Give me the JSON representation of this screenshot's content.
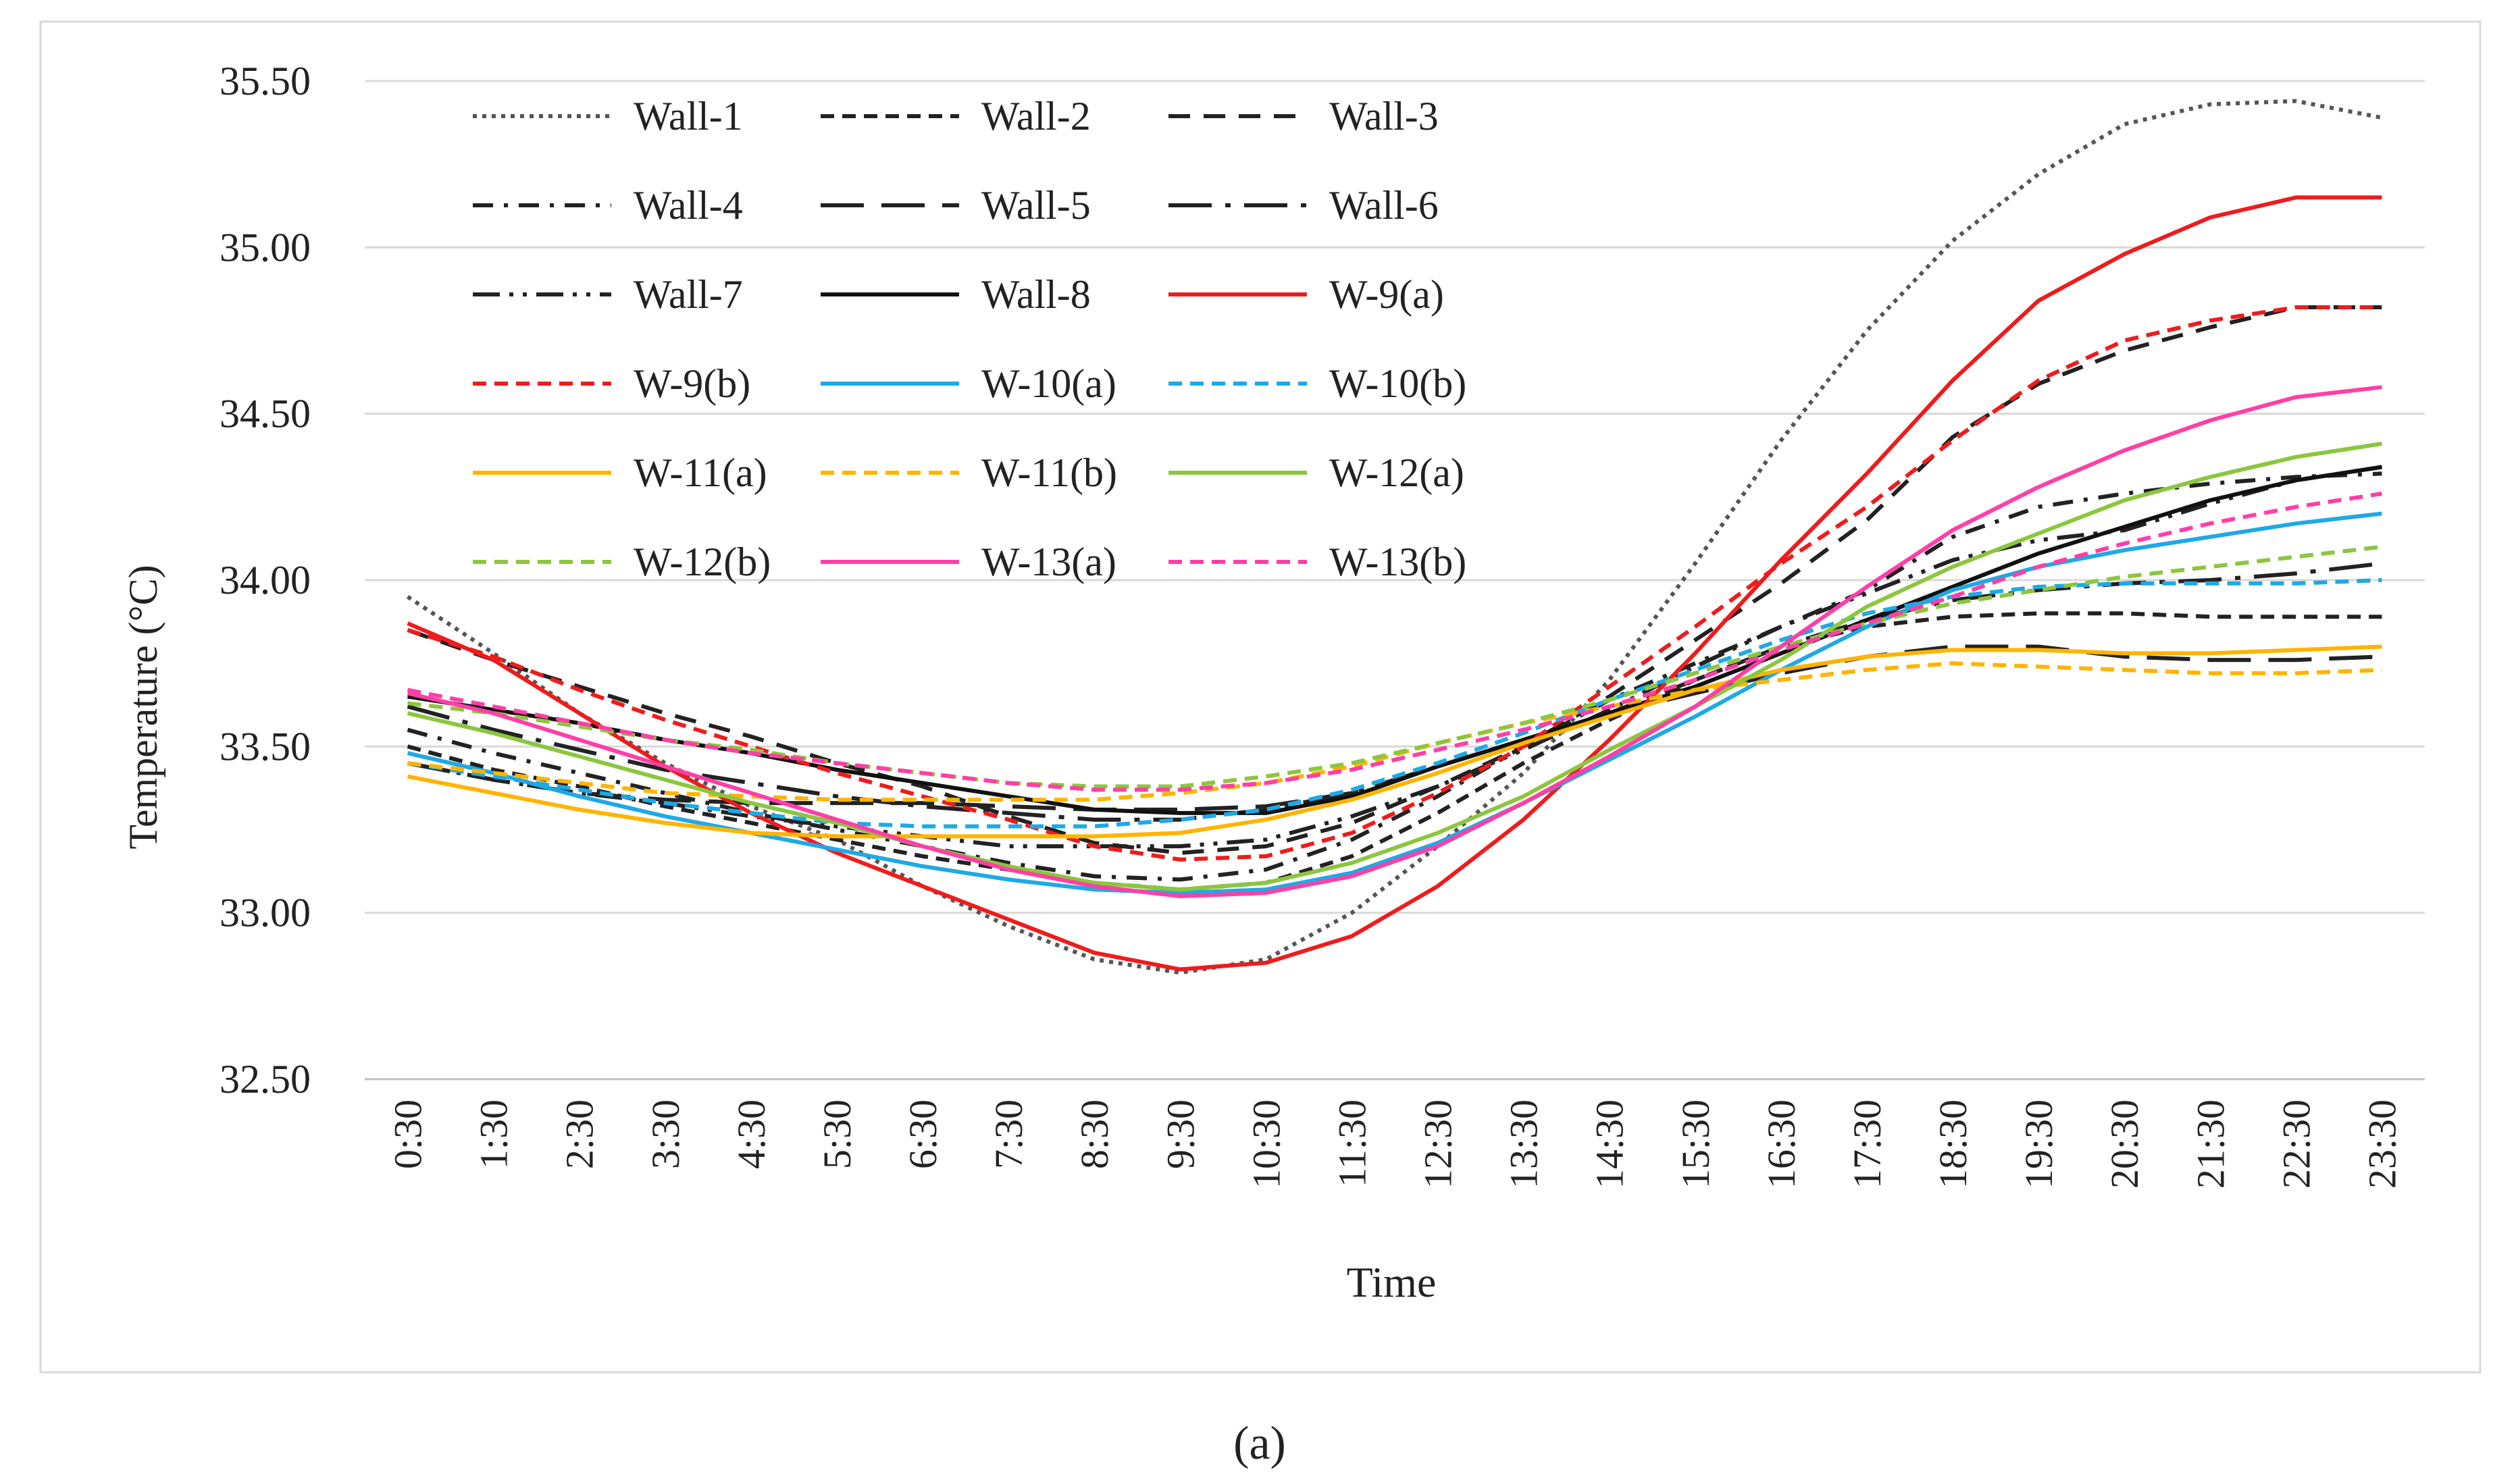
{
  "chart_data": {
    "type": "line",
    "title": "",
    "xlabel": "Time",
    "ylabel": "Temperature (°C)",
    "caption": "(a)",
    "ylim": [
      32.5,
      35.5
    ],
    "yticks": [
      "32.50",
      "33.00",
      "33.50",
      "34.00",
      "34.50",
      "35.00",
      "35.50"
    ],
    "grid": true,
    "legend_position": "top-left",
    "x": [
      "0:30",
      "1:30",
      "2:30",
      "3:30",
      "4:30",
      "5:30",
      "6:30",
      "7:30",
      "8:30",
      "9:30",
      "10:30",
      "11:30",
      "12:30",
      "13:30",
      "14:30",
      "15:30",
      "16:30",
      "17:30",
      "18:30",
      "19:30",
      "20:30",
      "21:30",
      "22:30",
      "23:30"
    ],
    "series": [
      {
        "name": "Wall-1",
        "color": "#555555",
        "dash": "dot",
        "values": [
          33.95,
          33.78,
          33.6,
          33.45,
          33.32,
          33.22,
          33.08,
          32.96,
          32.86,
          32.82,
          32.86,
          33.0,
          33.2,
          33.42,
          33.7,
          34.05,
          34.42,
          34.75,
          35.02,
          35.22,
          35.37,
          35.43,
          35.44,
          35.39
        ]
      },
      {
        "name": "Wall-2",
        "color": "#222222",
        "dash": "short",
        "values": [
          33.5,
          33.43,
          33.38,
          33.32,
          33.27,
          33.22,
          33.17,
          33.13,
          33.09,
          33.07,
          33.09,
          33.17,
          33.3,
          33.45,
          33.58,
          33.7,
          33.8,
          33.86,
          33.89,
          33.9,
          33.9,
          33.89,
          33.89,
          33.89
        ]
      },
      {
        "name": "Wall-3",
        "color": "#222222",
        "dash": "medium",
        "values": [
          33.85,
          33.76,
          33.68,
          33.6,
          33.53,
          33.45,
          33.38,
          33.29,
          33.21,
          33.18,
          33.2,
          33.27,
          33.38,
          33.5,
          33.65,
          33.82,
          33.99,
          34.18,
          34.43,
          34.59,
          34.69,
          34.76,
          34.82,
          34.82
        ]
      },
      {
        "name": "Wall-4",
        "color": "#222222",
        "dash": "dashdot-short",
        "values": [
          33.55,
          33.48,
          33.42,
          33.36,
          33.3,
          33.25,
          33.2,
          33.15,
          33.11,
          33.1,
          33.13,
          33.22,
          33.35,
          33.5,
          33.64,
          33.75,
          33.86,
          33.97,
          34.13,
          34.22,
          34.26,
          34.29,
          34.31,
          34.32
        ]
      },
      {
        "name": "Wall-5",
        "color": "#222222",
        "dash": "long",
        "values": [
          33.45,
          33.4,
          33.36,
          33.34,
          33.33,
          33.33,
          33.33,
          33.32,
          33.31,
          33.31,
          33.32,
          33.36,
          33.44,
          33.52,
          33.6,
          33.66,
          33.72,
          33.77,
          33.8,
          33.8,
          33.77,
          33.76,
          33.76,
          33.77
        ]
      },
      {
        "name": "Wall-6",
        "color": "#222222",
        "dash": "longdot",
        "values": [
          33.62,
          33.55,
          33.49,
          33.43,
          33.39,
          33.35,
          33.32,
          33.3,
          33.28,
          33.28,
          33.31,
          33.36,
          33.44,
          33.52,
          33.6,
          33.7,
          33.8,
          33.88,
          33.94,
          33.97,
          33.99,
          34.0,
          34.02,
          34.05
        ]
      },
      {
        "name": "Wall-7",
        "color": "#222222",
        "dash": "dashdotdot",
        "values": [
          33.45,
          33.4,
          33.36,
          33.33,
          33.29,
          33.26,
          33.23,
          33.2,
          33.2,
          33.2,
          33.22,
          33.29,
          33.38,
          33.49,
          33.61,
          33.74,
          33.86,
          33.96,
          34.06,
          34.12,
          34.15,
          34.23,
          34.3,
          34.34
        ]
      },
      {
        "name": "Wall-8",
        "color": "#111111",
        "dash": "solid",
        "values": [
          33.65,
          33.61,
          33.57,
          33.52,
          33.48,
          33.43,
          33.39,
          33.35,
          33.31,
          33.3,
          33.3,
          33.35,
          33.44,
          33.52,
          33.6,
          33.68,
          33.78,
          33.88,
          33.98,
          34.08,
          34.16,
          34.24,
          34.3,
          34.34
        ]
      },
      {
        "name": "W-9(a)",
        "color": "#ee1c1c",
        "dash": "solid",
        "values": [
          33.87,
          33.76,
          33.6,
          33.44,
          33.3,
          33.18,
          33.08,
          32.98,
          32.88,
          32.83,
          32.85,
          32.93,
          33.08,
          33.28,
          33.52,
          33.78,
          34.06,
          34.32,
          34.6,
          34.84,
          34.98,
          35.09,
          35.15,
          35.15
        ]
      },
      {
        "name": "W-9(b)",
        "color": "#ee1c1c",
        "dash": "short",
        "values": [
          33.85,
          33.77,
          33.67,
          33.58,
          33.5,
          33.42,
          33.35,
          33.28,
          33.2,
          33.16,
          33.17,
          33.24,
          33.36,
          33.5,
          33.68,
          33.86,
          34.05,
          34.22,
          34.42,
          34.6,
          34.72,
          34.78,
          34.82,
          34.82
        ]
      },
      {
        "name": "W-10(a)",
        "color": "#1ea9e6",
        "dash": "solid",
        "values": [
          33.48,
          33.42,
          33.35,
          33.29,
          33.24,
          33.19,
          33.14,
          33.1,
          33.07,
          33.06,
          33.07,
          33.12,
          33.21,
          33.33,
          33.46,
          33.59,
          33.73,
          33.86,
          33.97,
          34.04,
          34.09,
          34.13,
          34.17,
          34.2
        ]
      },
      {
        "name": "W-10(b)",
        "color": "#1ea9e6",
        "dash": "short",
        "values": [
          33.45,
          33.41,
          33.37,
          33.33,
          33.3,
          33.27,
          33.26,
          33.26,
          33.26,
          33.28,
          33.31,
          33.37,
          33.45,
          33.54,
          33.64,
          33.73,
          33.82,
          33.9,
          33.95,
          33.98,
          33.99,
          33.99,
          33.99,
          34.0
        ]
      },
      {
        "name": "W-11(a)",
        "color": "#ffb400",
        "dash": "solid",
        "values": [
          33.41,
          33.36,
          33.31,
          33.27,
          33.24,
          33.23,
          33.23,
          33.23,
          33.23,
          33.24,
          33.28,
          33.34,
          33.42,
          33.51,
          33.59,
          33.67,
          33.73,
          33.77,
          33.79,
          33.79,
          33.78,
          33.78,
          33.79,
          33.8
        ]
      },
      {
        "name": "W-11(b)",
        "color": "#ffb400",
        "dash": "short",
        "values": [
          33.45,
          33.42,
          33.39,
          33.36,
          33.35,
          33.34,
          33.34,
          33.34,
          33.34,
          33.36,
          33.39,
          33.44,
          33.51,
          33.57,
          33.62,
          33.67,
          33.7,
          33.73,
          33.75,
          33.74,
          33.73,
          33.72,
          33.72,
          33.73
        ]
      },
      {
        "name": "W-12(a)",
        "color": "#8cc63e",
        "dash": "solid",
        "values": [
          33.6,
          33.54,
          33.47,
          33.4,
          33.33,
          33.27,
          33.2,
          33.14,
          33.09,
          33.07,
          33.09,
          33.15,
          33.24,
          33.35,
          33.49,
          33.62,
          33.76,
          33.92,
          34.04,
          34.14,
          34.24,
          34.31,
          34.37,
          34.41
        ]
      },
      {
        "name": "W-12(b)",
        "color": "#8cc63e",
        "dash": "short",
        "values": [
          33.63,
          33.6,
          33.56,
          33.52,
          33.49,
          33.45,
          33.42,
          33.39,
          33.38,
          33.38,
          33.41,
          33.45,
          33.51,
          33.57,
          33.64,
          33.72,
          33.8,
          33.87,
          33.93,
          33.97,
          34.01,
          34.04,
          34.07,
          34.1
        ]
      },
      {
        "name": "W-13(a)",
        "color": "#ff3fa6",
        "dash": "solid",
        "values": [
          33.66,
          33.6,
          33.52,
          33.44,
          33.36,
          33.28,
          33.2,
          33.13,
          33.08,
          33.05,
          33.06,
          33.11,
          33.2,
          33.33,
          33.47,
          33.62,
          33.8,
          33.98,
          34.15,
          34.28,
          34.39,
          34.48,
          34.55,
          34.58
        ]
      },
      {
        "name": "W-13(b)",
        "color": "#ff3fa6",
        "dash": "short",
        "values": [
          33.67,
          33.62,
          33.57,
          33.52,
          33.48,
          33.45,
          33.42,
          33.39,
          33.37,
          33.37,
          33.39,
          33.43,
          33.49,
          33.55,
          33.62,
          33.7,
          33.79,
          33.87,
          33.95,
          34.04,
          34.11,
          34.17,
          34.22,
          34.26
        ]
      }
    ]
  }
}
